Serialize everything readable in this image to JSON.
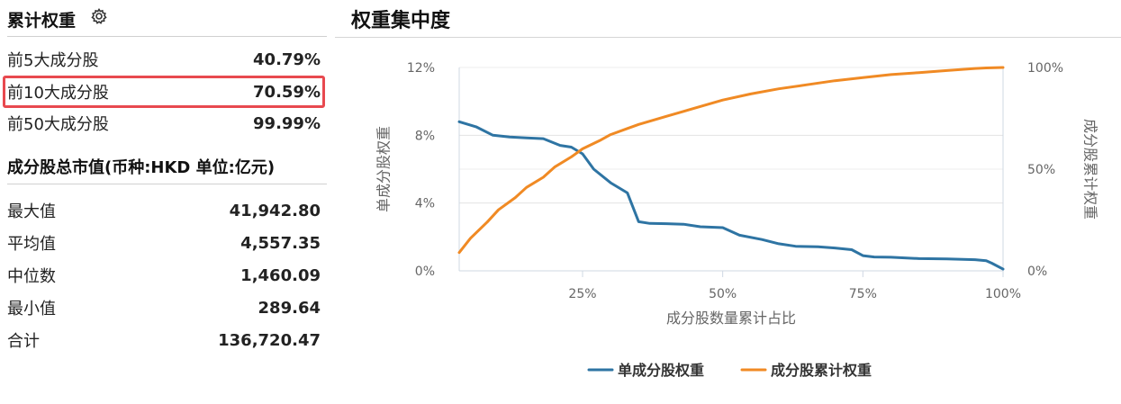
{
  "left_panel": {
    "cum_title": "累计权重",
    "cum_icon": "gear-icon",
    "cum_rows": [
      {
        "label": "前5大成分股",
        "value": "40.79%"
      },
      {
        "label": "前10大成分股",
        "value": "70.59%",
        "highlighted": true
      },
      {
        "label": "前50大成分股",
        "value": "99.99%"
      }
    ],
    "mv_title": "成分股总市值(币种:HKD 单位:亿元)",
    "mv_rows": [
      {
        "label": "最大值",
        "value": "41,942.80"
      },
      {
        "label": "平均值",
        "value": "4,557.35"
      },
      {
        "label": "中位数",
        "value": "1,460.09"
      },
      {
        "label": "最小值",
        "value": "289.64"
      },
      {
        "label": "合计",
        "value": "136,720.47"
      }
    ],
    "highlight_color": "#e8494f"
  },
  "chart_data": {
    "type": "line",
    "title": "权重集中度",
    "xlabel": "成分股数量累计占比",
    "ylabel_left": "单成分股权重",
    "ylabel_right": "成分股累计权重",
    "x_ticks": [
      "25%",
      "50%",
      "75%",
      "100%"
    ],
    "y_left_ticks": [
      "0%",
      "4%",
      "8%",
      "12%"
    ],
    "y_right_ticks": [
      "0%",
      "50%",
      "100%"
    ],
    "xlim": [
      3,
      100
    ],
    "ylim_left": [
      0,
      12
    ],
    "ylim_right": [
      0,
      100
    ],
    "grid": true,
    "legend_position": "bottom",
    "series": [
      {
        "name": "单成分股权重",
        "axis": "left",
        "color": "#2e74a3",
        "x": [
          3,
          6,
          9,
          12,
          15,
          18,
          21,
          23,
          25,
          27,
          30,
          33,
          35,
          37,
          40,
          43,
          46,
          50,
          53,
          57,
          60,
          63,
          67,
          70,
          73,
          75,
          77,
          80,
          85,
          90,
          95,
          97,
          98,
          100
        ],
        "y": [
          8.8,
          8.5,
          8.0,
          7.9,
          7.85,
          7.8,
          7.4,
          7.3,
          6.9,
          6.0,
          5.2,
          4.6,
          2.9,
          2.8,
          2.78,
          2.75,
          2.6,
          2.55,
          2.1,
          1.85,
          1.6,
          1.45,
          1.42,
          1.35,
          1.25,
          0.9,
          0.82,
          0.8,
          0.72,
          0.7,
          0.66,
          0.6,
          0.45,
          0.1
        ]
      },
      {
        "name": "成分股累计权重",
        "axis": "right",
        "color": "#f08a24",
        "x": [
          3,
          5,
          8,
          10,
          13,
          15,
          18,
          20,
          23,
          25,
          28,
          30,
          33,
          35,
          40,
          45,
          50,
          55,
          60,
          65,
          70,
          75,
          80,
          85,
          90,
          95,
          97,
          100
        ],
        "y": [
          9,
          16,
          24,
          30,
          36,
          41,
          46,
          51,
          56,
          60,
          64,
          67,
          70,
          72,
          76,
          80,
          84,
          87,
          89.5,
          91.5,
          93.5,
          95,
          96.5,
          97.5,
          98.5,
          99.5,
          99.8,
          100
        ]
      }
    ]
  }
}
